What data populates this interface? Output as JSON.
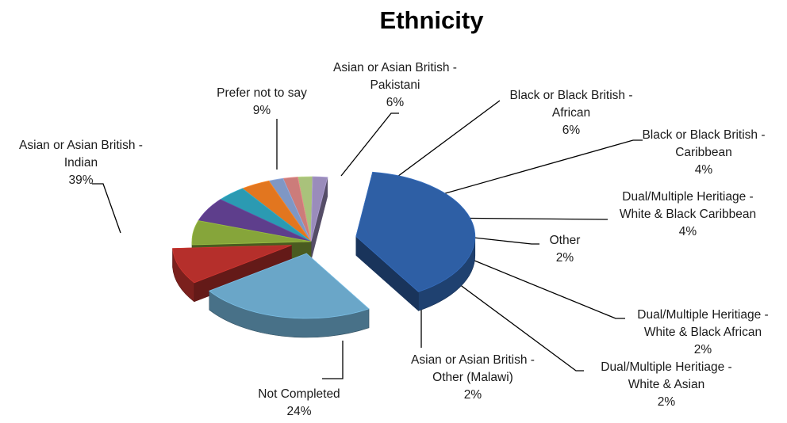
{
  "chart_data": {
    "type": "pie",
    "title": "Ethnicity",
    "three_d": true,
    "exploded": true,
    "slices": [
      {
        "name": "Asian or Asian British - Indian",
        "label_lines": [
          "Asian or Asian British -",
          "Indian"
        ],
        "value": 39,
        "pct_label": "39%",
        "color": "#2e5fa5"
      },
      {
        "name": "Not Completed",
        "label_lines": [
          "Not Completed"
        ],
        "value": 24,
        "pct_label": "24%",
        "color": "#6aa6c8"
      },
      {
        "name": "Prefer not to say",
        "label_lines": [
          "Prefer not to say"
        ],
        "value": 9,
        "pct_label": "9%",
        "color": "#b52f2b"
      },
      {
        "name": "Asian or Asian British - Pakistani",
        "label_lines": [
          "Asian or Asian British -",
          "Pakistani"
        ],
        "value": 6,
        "pct_label": "6%",
        "color": "#86a53a"
      },
      {
        "name": "Black or Black British - African",
        "label_lines": [
          "Black or Black British -",
          "African"
        ],
        "value": 6,
        "pct_label": "6%",
        "color": "#5e3e8c"
      },
      {
        "name": "Black or Black British - Caribbean",
        "label_lines": [
          "Black or Black British -",
          "Caribbean"
        ],
        "value": 4,
        "pct_label": "4%",
        "color": "#2b9ab2"
      },
      {
        "name": "Dual/Multiple Heritiage - White & Black Caribbean",
        "label_lines": [
          "Dual/Multiple Heritiage -",
          "White & Black Caribbean"
        ],
        "value": 4,
        "pct_label": "4%",
        "color": "#e2761f"
      },
      {
        "name": "Other",
        "label_lines": [
          "Other"
        ],
        "value": 2,
        "pct_label": "2%",
        "color": "#7f97c4"
      },
      {
        "name": "Dual/Multiple Heritiage - White & Black African",
        "label_lines": [
          "Dual/Multiple Heritiage -",
          "White & Black African"
        ],
        "value": 2,
        "pct_label": "2%",
        "color": "#cc7c7a"
      },
      {
        "name": "Dual/Multiple Heritiage - White & Asian",
        "label_lines": [
          "Dual/Multiple Heritiage -",
          "White & Asian"
        ],
        "value": 2,
        "pct_label": "2%",
        "color": "#a9c27b"
      },
      {
        "name": "Asian or Asian British - Other (Malawi)",
        "label_lines": [
          "Asian or Asian British -",
          "Other (Malawi)"
        ],
        "value": 2,
        "pct_label": "2%",
        "color": "#9a8cbb"
      }
    ]
  }
}
